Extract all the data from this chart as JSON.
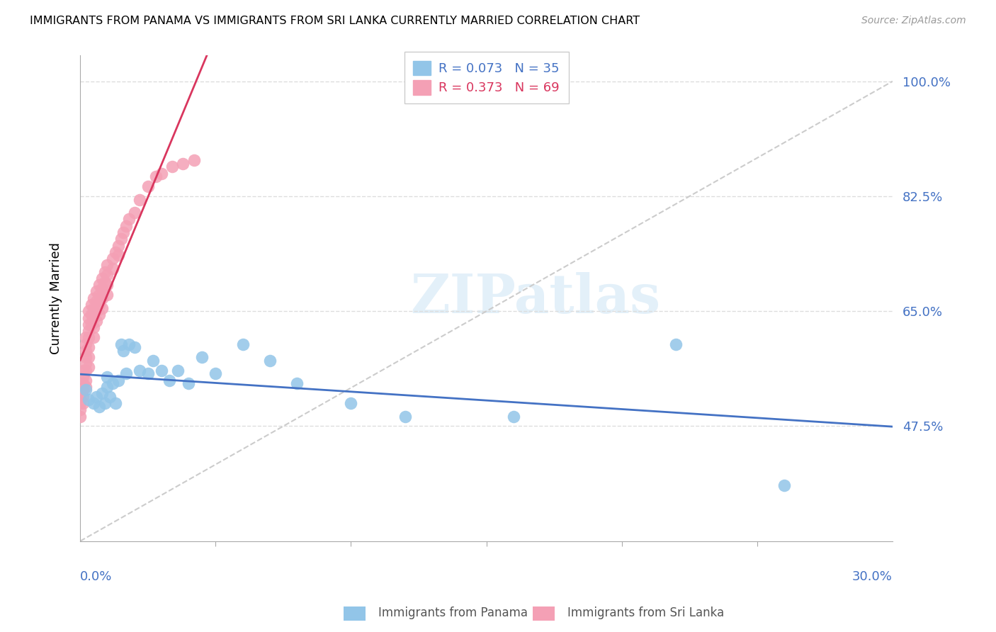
{
  "title": "IMMIGRANTS FROM PANAMA VS IMMIGRANTS FROM SRI LANKA CURRENTLY MARRIED CORRELATION CHART",
  "source": "Source: ZipAtlas.com",
  "ylabel": "Currently Married",
  "xlim": [
    0.0,
    0.3
  ],
  "ylim": [
    0.3,
    1.04
  ],
  "watermark": "ZIPatlas",
  "legend": [
    {
      "label": "R = 0.073   N = 35",
      "color": "#92c5e8"
    },
    {
      "label": "R = 0.373   N = 69",
      "color": "#f4a0b5"
    }
  ],
  "panama_color": "#92c5e8",
  "srilanka_color": "#f4a0b5",
  "panama_trend_color": "#4472c4",
  "srilanka_trend_color": "#d9365e",
  "diagonal_color": "#cccccc",
  "panama_x": [
    0.002,
    0.003,
    0.005,
    0.006,
    0.007,
    0.008,
    0.009,
    0.01,
    0.01,
    0.011,
    0.012,
    0.013,
    0.014,
    0.015,
    0.016,
    0.017,
    0.018,
    0.02,
    0.022,
    0.025,
    0.027,
    0.03,
    0.033,
    0.036,
    0.04,
    0.045,
    0.05,
    0.06,
    0.07,
    0.08,
    0.1,
    0.12,
    0.16,
    0.22,
    0.26
  ],
  "panama_y": [
    0.53,
    0.515,
    0.51,
    0.52,
    0.505,
    0.525,
    0.51,
    0.535,
    0.55,
    0.52,
    0.54,
    0.51,
    0.545,
    0.6,
    0.59,
    0.555,
    0.6,
    0.595,
    0.56,
    0.555,
    0.575,
    0.56,
    0.545,
    0.56,
    0.54,
    0.58,
    0.555,
    0.6,
    0.575,
    0.54,
    0.51,
    0.49,
    0.49,
    0.6,
    0.385
  ],
  "srilanka_x": [
    0.0,
    0.0,
    0.0,
    0.0,
    0.001,
    0.001,
    0.001,
    0.001,
    0.001,
    0.001,
    0.002,
    0.002,
    0.002,
    0.002,
    0.002,
    0.002,
    0.002,
    0.002,
    0.003,
    0.003,
    0.003,
    0.003,
    0.003,
    0.003,
    0.003,
    0.003,
    0.004,
    0.004,
    0.004,
    0.005,
    0.005,
    0.005,
    0.005,
    0.005,
    0.006,
    0.006,
    0.006,
    0.006,
    0.007,
    0.007,
    0.007,
    0.007,
    0.008,
    0.008,
    0.008,
    0.008,
    0.009,
    0.009,
    0.01,
    0.01,
    0.01,
    0.01,
    0.012,
    0.012,
    0.013,
    0.014,
    0.014,
    0.015,
    0.016,
    0.017,
    0.018,
    0.02,
    0.022,
    0.025,
    0.028,
    0.03,
    0.034,
    0.038,
    0.042
  ],
  "srilanka_y": [
    0.52,
    0.51,
    0.5,
    0.49,
    0.56,
    0.55,
    0.54,
    0.53,
    0.52,
    0.51,
    0.61,
    0.6,
    0.59,
    0.58,
    0.57,
    0.56,
    0.545,
    0.535,
    0.65,
    0.64,
    0.63,
    0.62,
    0.61,
    0.595,
    0.58,
    0.565,
    0.66,
    0.645,
    0.63,
    0.67,
    0.655,
    0.64,
    0.625,
    0.61,
    0.68,
    0.665,
    0.65,
    0.635,
    0.69,
    0.675,
    0.66,
    0.645,
    0.7,
    0.685,
    0.67,
    0.655,
    0.71,
    0.695,
    0.72,
    0.705,
    0.69,
    0.675,
    0.73,
    0.715,
    0.74,
    0.75,
    0.735,
    0.76,
    0.77,
    0.78,
    0.79,
    0.8,
    0.82,
    0.84,
    0.855,
    0.86,
    0.87,
    0.875,
    0.88
  ],
  "background_color": "#ffffff",
  "grid_color": "#dddddd",
  "ytick_positions": [
    0.475,
    0.65,
    0.825,
    1.0
  ],
  "ytick_labels": [
    "47.5%",
    "65.0%",
    "82.5%",
    "100.0%"
  ]
}
